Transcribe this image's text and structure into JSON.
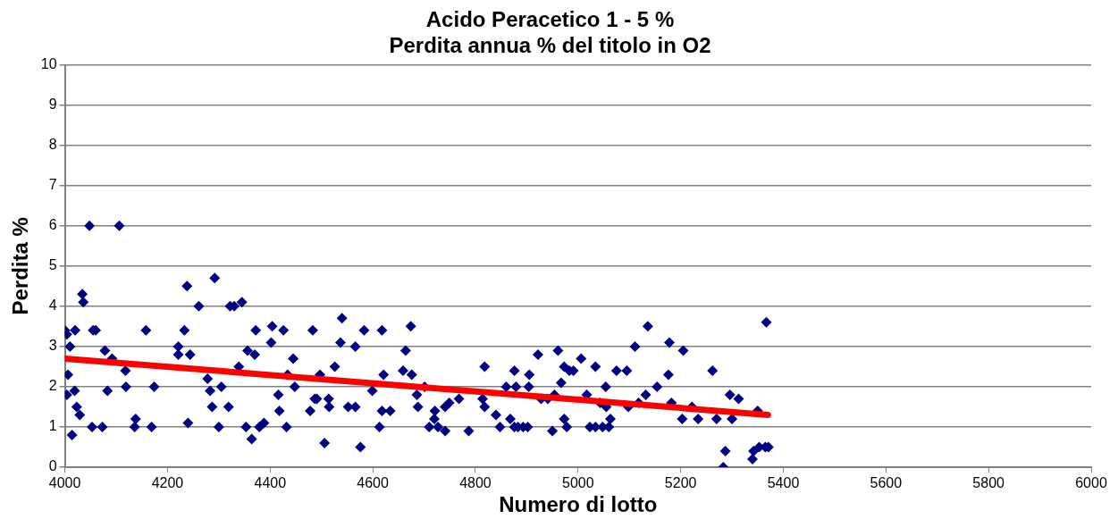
{
  "chart_data": {
    "type": "scatter",
    "title": "Acido Peracetico 1 - 5 %",
    "subtitle": "Perdita annua % del titolo in O2",
    "xlabel": "Numero di lotto",
    "ylabel": "Perdita %",
    "xlim": [
      4000,
      6000
    ],
    "xticks": [
      4000,
      4200,
      4400,
      4600,
      4800,
      5000,
      5200,
      5400,
      5600,
      5800,
      6000
    ],
    "ylim": [
      0,
      10
    ],
    "yticks": [
      0,
      1,
      2,
      3,
      4,
      5,
      6,
      7,
      8,
      9,
      10
    ],
    "grid": "y",
    "legend": false,
    "series": [
      {
        "type": "scatter",
        "marker": "diamond",
        "color": "#000080",
        "x": [
          4000,
          4004,
          4020,
          4010,
          4006,
          4004,
          4019,
          4023,
          4029,
          4014,
          4034,
          4036,
          4048,
          4106,
          4055,
          4060,
          4053,
          4073,
          4078,
          4092,
          4083,
          4118,
          4119,
          4138,
          4136,
          4169,
          4158,
          4174,
          4221,
          4221,
          4244,
          4233,
          4238,
          4240,
          4261,
          4278,
          4283,
          4287,
          4292,
          4305,
          4300,
          4319,
          4322,
          4330,
          4345,
          4339,
          4356,
          4370,
          4353,
          4364,
          4372,
          4379,
          4388,
          4404,
          4402,
          4416,
          4418,
          4426,
          4432,
          4445,
          4434,
          4448,
          4478,
          4483,
          4487,
          4497,
          4491,
          4506,
          4514,
          4515,
          4526,
          4540,
          4537,
          4566,
          4552,
          4566,
          4576,
          4583,
          4599,
          4618,
          4613,
          4621,
          4618,
          4634,
          4664,
          4674,
          4659,
          4676,
          4686,
          4688,
          4701,
          4710,
          4727,
          4741,
          4721,
          4720,
          4741,
          4749,
          4768,
          4787,
          4818,
          4814,
          4818,
          4840,
          4848,
          4860,
          4876,
          4879,
          4868,
          4876,
          4883,
          4893,
          4902,
          4905,
          4904,
          4922,
          4928,
          4941,
          4954,
          4950,
          4961,
          4973,
          4983,
          4967,
          4973,
          4978,
          5006,
          4991,
          5017,
          5034,
          5023,
          5034,
          5048,
          5060,
          5043,
          5055,
          5054,
          5063,
          5075,
          5095,
          5098,
          5111,
          5118,
          5132,
          5136,
          5154,
          5178,
          5176,
          5182,
          5205,
          5203,
          5222,
          5234,
          5262,
          5270,
          5287,
          5283,
          5296,
          5313,
          5300,
          5350,
          5342,
          5340,
          5353,
          5365,
          5371,
          5367
        ],
        "values": [
          3.4,
          3.3,
          3.4,
          3.0,
          2.3,
          1.8,
          1.9,
          1.5,
          1.3,
          0.8,
          4.3,
          4.1,
          6.0,
          6.0,
          3.4,
          3.4,
          1.0,
          1.0,
          2.9,
          2.7,
          1.9,
          2.4,
          2.0,
          1.2,
          1.0,
          1.0,
          3.4,
          2.0,
          3.0,
          2.8,
          2.8,
          3.4,
          4.5,
          1.1,
          4.0,
          2.2,
          1.9,
          1.5,
          4.7,
          2.0,
          1.0,
          1.5,
          4.0,
          4.0,
          4.1,
          2.5,
          2.9,
          2.8,
          1.0,
          0.7,
          3.4,
          1.0,
          1.1,
          3.5,
          3.1,
          1.8,
          1.4,
          3.4,
          1.0,
          2.7,
          2.3,
          2.0,
          1.4,
          3.4,
          1.7,
          2.3,
          1.7,
          0.6,
          1.7,
          1.5,
          2.5,
          3.7,
          3.1,
          3.0,
          1.5,
          1.5,
          0.5,
          3.4,
          1.9,
          3.4,
          1.0,
          2.3,
          1.4,
          1.4,
          2.9,
          3.5,
          2.4,
          2.3,
          1.8,
          1.5,
          2.0,
          1.0,
          1.0,
          0.9,
          1.4,
          1.2,
          1.5,
          1.6,
          1.7,
          0.9,
          2.5,
          1.7,
          1.5,
          1.3,
          1.0,
          2.0,
          2.4,
          2.0,
          1.2,
          1.0,
          1.0,
          1.0,
          1.0,
          2.3,
          2.0,
          2.8,
          1.7,
          1.7,
          1.8,
          0.9,
          2.9,
          2.5,
          2.4,
          2.1,
          1.2,
          1.0,
          2.7,
          2.4,
          1.8,
          2.5,
          1.0,
          1.0,
          1.0,
          1.0,
          1.6,
          1.5,
          2.0,
          1.2,
          2.4,
          2.4,
          1.5,
          3.0,
          1.6,
          1.8,
          3.5,
          2.0,
          3.1,
          2.3,
          1.6,
          2.9,
          1.2,
          1.5,
          1.2,
          2.4,
          1.2,
          0.4,
          0.0,
          1.8,
          1.7,
          1.2,
          1.4,
          0.4,
          0.2,
          0.5,
          0.5,
          0.5,
          3.6
        ]
      },
      {
        "type": "line",
        "marker": "none",
        "color": "#ff0000",
        "x": [
          4000,
          5370
        ],
        "values": [
          2.7,
          1.3
        ]
      }
    ]
  }
}
